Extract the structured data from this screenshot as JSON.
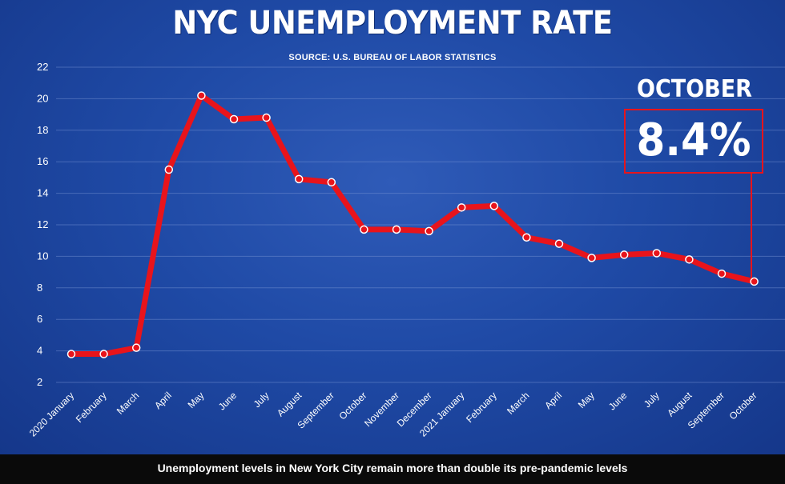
{
  "header": {
    "title": "NYC UNEMPLOYMENT RATE",
    "source": "SOURCE: U.S. BUREAU OF LABOR STATISTICS"
  },
  "callout": {
    "label": "OCTOBER",
    "value": "8.4%"
  },
  "caption": "Unemployment levels in New York City remain more than double its pre-pandemic levels",
  "colors": {
    "line": "#e8141b",
    "background": "#1f4aa6",
    "text": "#ffffff"
  },
  "chart_data": {
    "type": "line",
    "title": "NYC UNEMPLOYMENT RATE",
    "subtitle": "SOURCE: U.S. BUREAU OF LABOR STATISTICS",
    "categories": [
      "2020 January",
      "February",
      "March",
      "April",
      "May",
      "June",
      "July",
      "August",
      "September",
      "October",
      "November",
      "December",
      "2021 January",
      "February",
      "March",
      "April",
      "May",
      "June",
      "July",
      "August",
      "September",
      "October"
    ],
    "values": [
      3.8,
      3.8,
      4.2,
      15.5,
      20.2,
      18.7,
      18.8,
      14.9,
      14.7,
      11.7,
      11.7,
      11.6,
      13.1,
      13.2,
      11.2,
      10.8,
      9.9,
      10.1,
      10.2,
      9.8,
      8.9,
      8.4
    ],
    "yticks": [
      2,
      4,
      6,
      8,
      10,
      12,
      14,
      16,
      18,
      20,
      22
    ],
    "ylim": [
      2,
      22
    ],
    "grid": true,
    "legend": "none"
  }
}
